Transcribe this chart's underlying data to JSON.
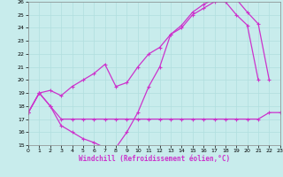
{
  "xlabel": "Windchill (Refroidissement éolien,°C)",
  "background_color": "#c8ecec",
  "grid_color": "#b0dede",
  "line_color": "#cc33cc",
  "xmin": 0,
  "xmax": 23,
  "ymin": 15,
  "ymax": 26,
  "line1_x": [
    0,
    1,
    2,
    3,
    4,
    5,
    6,
    7,
    8,
    9,
    10,
    11,
    12,
    13,
    14,
    15,
    16,
    17,
    18,
    19,
    20,
    21,
    22,
    23
  ],
  "line1_y": [
    17.5,
    19.0,
    18.0,
    17.0,
    17.0,
    17.0,
    17.0,
    17.0,
    17.0,
    17.0,
    17.0,
    17.0,
    17.0,
    17.0,
    17.0,
    17.0,
    17.0,
    17.0,
    17.0,
    17.0,
    17.0,
    17.0,
    17.5,
    17.5
  ],
  "line2_x": [
    0,
    1,
    2,
    3,
    4,
    5,
    6,
    7,
    8,
    9,
    10,
    11,
    12,
    13,
    14,
    15,
    16,
    17,
    18,
    19,
    20,
    21,
    22,
    23
  ],
  "line2_y": [
    17.5,
    19.0,
    18.0,
    16.5,
    16.0,
    15.5,
    15.2,
    14.8,
    14.8,
    16.0,
    17.5,
    19.5,
    21.0,
    23.5,
    24.0,
    25.0,
    25.5,
    26.0,
    26.0,
    25.0,
    24.2,
    20.0,
    null,
    null
  ],
  "line3_x": [
    0,
    1,
    2,
    3,
    4,
    5,
    6,
    7,
    8,
    9,
    10,
    11,
    12,
    13,
    14,
    15,
    16,
    17,
    18,
    19,
    20,
    21,
    22
  ],
  "line3_y": [
    17.5,
    19.0,
    19.2,
    18.8,
    19.5,
    20.0,
    20.5,
    21.2,
    19.5,
    19.8,
    21.0,
    22.0,
    22.5,
    23.5,
    24.2,
    25.2,
    25.8,
    26.2,
    26.2,
    26.2,
    25.2,
    24.3,
    20.0
  ]
}
